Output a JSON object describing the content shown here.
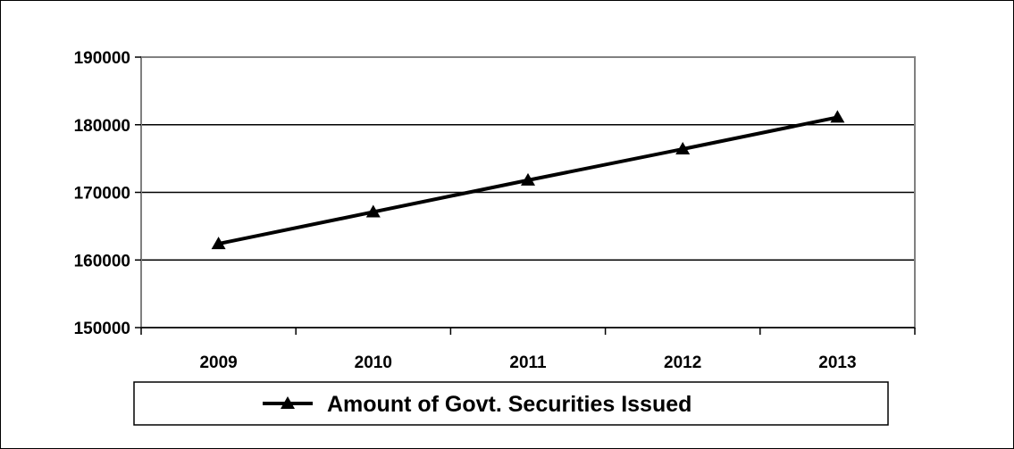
{
  "chart_data": {
    "type": "line",
    "categories": [
      "2009",
      "2010",
      "2011",
      "2012",
      "2013"
    ],
    "series": [
      {
        "name": "Amount of Govt. Securities Issued",
        "values": [
          162400,
          167100,
          171800,
          176400,
          181100
        ],
        "marker": "triangle",
        "color": "#000000"
      }
    ],
    "title": "",
    "xlabel": "",
    "ylabel": "",
    "ylim": [
      150000,
      190000
    ],
    "yticks": [
      "150000",
      "160000",
      "170000",
      "180000",
      "190000"
    ],
    "grid": true,
    "legend_position": "bottom"
  }
}
